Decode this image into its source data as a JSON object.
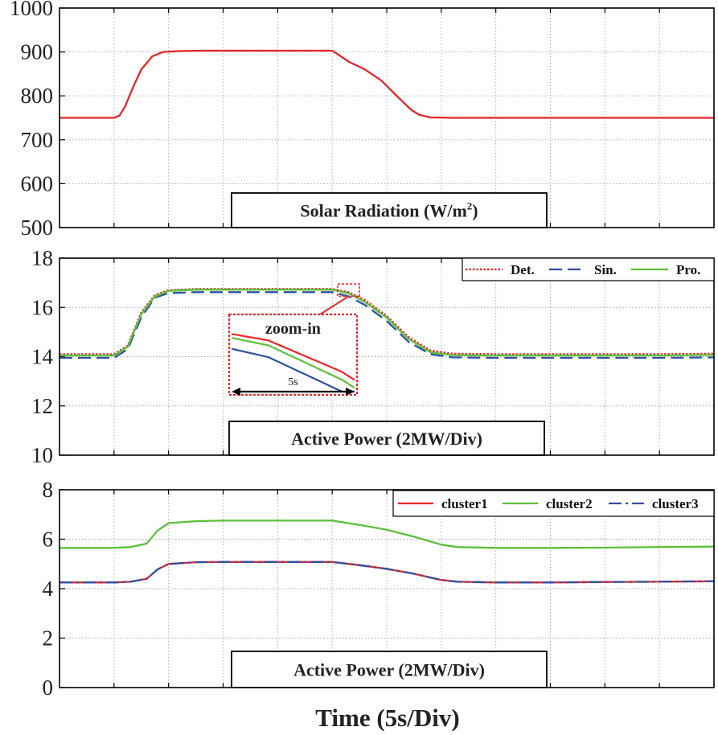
{
  "xlabel": "Time (5s/Div)",
  "x_divisions": 12,
  "colors": {
    "det": "#e8262b",
    "sin": "#3050a0",
    "pro": "#5cbf3a",
    "cluster1": "#e8262b",
    "cluster2": "#5cbf3a",
    "cluster3": "#3050a0",
    "radiation": "#e0262b",
    "zoom_box": "#e8262b"
  },
  "chart_data": [
    {
      "type": "line",
      "label": "Solar Radiation (W/m",
      "label_sup": "2",
      "label_end": ")",
      "ylim": [
        500,
        1000
      ],
      "yticks": [
        500,
        600,
        700,
        800,
        900,
        1000
      ],
      "series": [
        {
          "name": "radiation",
          "color": "#e0262b",
          "x": [
            0,
            0.5,
            1.0,
            1.1,
            1.2,
            1.35,
            1.5,
            1.7,
            1.9,
            2.2,
            2.6,
            3.0,
            4.0,
            4.6,
            5.0,
            5.1,
            5.3,
            5.6,
            5.9,
            6.2,
            6.45,
            6.6,
            6.8,
            7.2,
            8.0,
            9.0,
            10.0,
            11.0,
            12.0
          ],
          "y": [
            750,
            750,
            750,
            755,
            775,
            820,
            860,
            890,
            900,
            902,
            903,
            903,
            903,
            903,
            903,
            895,
            878,
            860,
            835,
            798,
            768,
            757,
            751,
            750,
            750,
            750,
            750,
            750,
            750
          ]
        }
      ]
    },
    {
      "type": "line",
      "label": "Active Power (2MW/Div)",
      "ylim": [
        10,
        18
      ],
      "yticks": [
        10,
        12,
        14,
        16,
        18
      ],
      "legend": [
        "Det.",
        "Sin.",
        "Pro."
      ],
      "zoom_label": "zoom-in",
      "zoom_span_label": "5s",
      "series": [
        {
          "name": "Det.",
          "style": "dotted",
          "color": "#e8262b",
          "x": [
            0,
            0.5,
            1.0,
            1.25,
            1.5,
            1.75,
            2.0,
            2.5,
            3.0,
            4.0,
            5.0,
            5.3,
            5.6,
            6.0,
            6.4,
            6.8,
            7.2,
            8.0,
            9.0,
            10.0,
            11.0,
            12.0
          ],
          "y": [
            14.1,
            14.1,
            14.1,
            14.45,
            15.8,
            16.5,
            16.7,
            16.75,
            16.75,
            16.75,
            16.75,
            16.62,
            16.3,
            15.65,
            14.8,
            14.25,
            14.12,
            14.1,
            14.1,
            14.1,
            14.1,
            14.12
          ]
        },
        {
          "name": "Sin.",
          "style": "dashed",
          "color": "#3050a0",
          "x": [
            0,
            0.5,
            1.0,
            1.25,
            1.5,
            1.75,
            2.0,
            2.5,
            3.0,
            4.0,
            5.0,
            5.3,
            5.6,
            6.0,
            6.4,
            6.8,
            7.2,
            8.0,
            9.0,
            10.0,
            11.0,
            12.0
          ],
          "y": [
            13.95,
            13.95,
            13.95,
            14.3,
            15.6,
            16.4,
            16.58,
            16.62,
            16.62,
            16.62,
            16.62,
            16.45,
            16.1,
            15.45,
            14.6,
            14.1,
            13.97,
            13.95,
            13.95,
            13.95,
            13.95,
            13.97
          ]
        },
        {
          "name": "Pro.",
          "style": "solid",
          "color": "#5cbf3a",
          "x": [
            0,
            0.5,
            1.0,
            1.25,
            1.5,
            1.75,
            2.0,
            2.5,
            3.0,
            4.0,
            5.0,
            5.3,
            5.6,
            6.0,
            6.4,
            6.8,
            7.2,
            8.0,
            9.0,
            10.0,
            11.0,
            12.0
          ],
          "y": [
            14.05,
            14.05,
            14.05,
            14.4,
            15.72,
            16.45,
            16.67,
            16.72,
            16.72,
            16.72,
            16.72,
            16.57,
            16.22,
            15.58,
            14.72,
            14.18,
            14.06,
            14.05,
            14.05,
            14.05,
            14.05,
            14.07
          ]
        }
      ]
    },
    {
      "type": "line",
      "label": "Active Power (2MW/Div)",
      "ylim": [
        0,
        8
      ],
      "yticks": [
        0,
        2,
        4,
        6,
        8
      ],
      "legend": [
        "cluster1",
        "cluster2",
        "cluster3"
      ],
      "series": [
        {
          "name": "cluster1",
          "style": "solid",
          "color": "#e8262b",
          "x": [
            0,
            0.5,
            1.0,
            1.3,
            1.6,
            1.8,
            2.0,
            2.5,
            3.0,
            4.0,
            5.0,
            5.5,
            6.0,
            6.5,
            7.0,
            7.3,
            8.0,
            9.0,
            10.0,
            11.0,
            12.0
          ],
          "y": [
            4.25,
            4.25,
            4.25,
            4.28,
            4.4,
            4.78,
            5.0,
            5.07,
            5.08,
            5.08,
            5.08,
            4.95,
            4.8,
            4.6,
            4.35,
            4.28,
            4.25,
            4.25,
            4.27,
            4.28,
            4.3
          ]
        },
        {
          "name": "cluster2",
          "style": "solid",
          "color": "#5cbf3a",
          "x": [
            0,
            0.5,
            1.0,
            1.3,
            1.6,
            1.8,
            2.0,
            2.5,
            3.0,
            4.0,
            5.0,
            5.5,
            6.0,
            6.5,
            7.0,
            7.3,
            8.0,
            9.0,
            10.0,
            11.0,
            12.0
          ],
          "y": [
            5.65,
            5.65,
            5.65,
            5.68,
            5.82,
            6.35,
            6.65,
            6.73,
            6.75,
            6.75,
            6.75,
            6.58,
            6.38,
            6.1,
            5.78,
            5.68,
            5.65,
            5.65,
            5.66,
            5.68,
            5.7
          ]
        },
        {
          "name": "cluster3",
          "style": "dashdot",
          "color": "#3050a0",
          "x": [
            0,
            0.5,
            1.0,
            1.3,
            1.6,
            1.8,
            2.0,
            2.5,
            3.0,
            4.0,
            5.0,
            5.5,
            6.0,
            6.5,
            7.0,
            7.3,
            8.0,
            9.0,
            10.0,
            11.0,
            12.0
          ],
          "y": [
            4.25,
            4.25,
            4.25,
            4.28,
            4.4,
            4.78,
            5.0,
            5.07,
            5.08,
            5.08,
            5.08,
            4.95,
            4.8,
            4.6,
            4.35,
            4.28,
            4.25,
            4.25,
            4.27,
            4.28,
            4.3
          ]
        }
      ]
    }
  ]
}
